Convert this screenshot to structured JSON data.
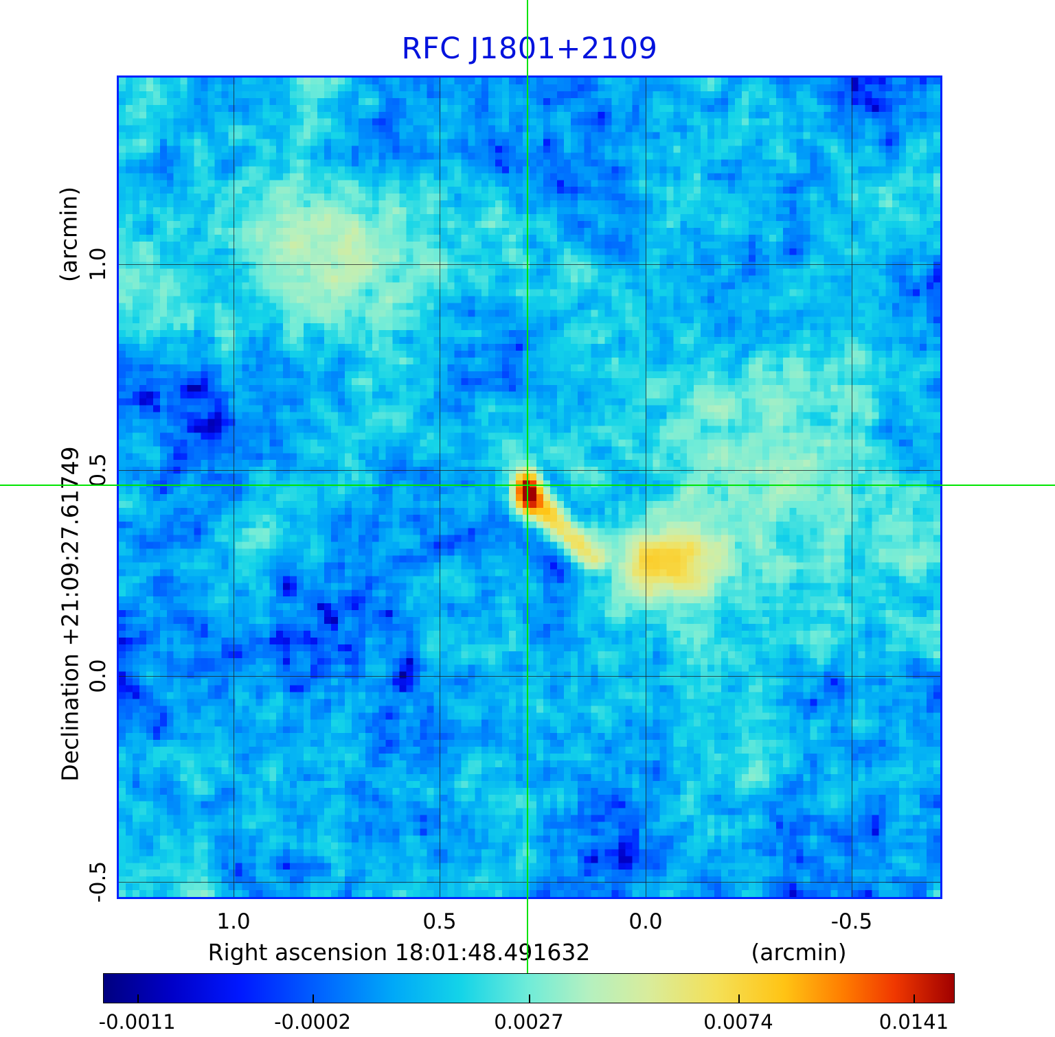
{
  "title": "RFC J1801+2109",
  "colors": {
    "title": "#0012dd",
    "plot_border": "#0022ff",
    "crosshair": "#00e400",
    "grid": "#1f1f1f"
  },
  "y_axis": {
    "unit": "(arcmin)",
    "label": "Declination  +21:09:27.61749",
    "ticks": [
      "1.0",
      "0.5",
      "0.0",
      "-0.5"
    ]
  },
  "x_axis": {
    "label": "Right ascension  18:01:48.491632",
    "unit": "(arcmin)",
    "ticks": [
      "1.0",
      "0.5",
      "0.0",
      "-0.5"
    ]
  },
  "colorbar": {
    "tick_labels": [
      "-0.0011",
      "-0.0002",
      "0.0027",
      "0.0074",
      "0.0141"
    ]
  },
  "chart_data": {
    "type": "heatmap",
    "title": "RFC J1801+2109",
    "xlabel": "Right ascension 18:01:48.491632 (arcmin)",
    "ylabel": "Declination +21:09:27.61749 (arcmin)",
    "x_range_arcmin": [
      1.2783,
      -0.715
    ],
    "y_range_arcmin": [
      1.4533,
      -0.5367
    ],
    "x_ticks_arcmin": [
      1.0,
      0.5,
      0.0,
      -0.5
    ],
    "y_ticks_arcmin": [
      1.0,
      0.5,
      0.0,
      -0.5
    ],
    "grid": true,
    "crosshair_arcmin": {
      "x": 0.287,
      "y": 0.463
    },
    "intensity_ticks": [
      -0.0011,
      -0.0002,
      0.0027,
      0.0074,
      0.0141
    ],
    "intensity_tick_positions": [
      0.04,
      0.246,
      0.5,
      0.746,
      0.952
    ],
    "background": {
      "mean": 0.0011,
      "fine_rms": 0.00042,
      "coarse_rms": 0.00055,
      "pixel_rms": 0.00012,
      "seed": 20109
    },
    "features": [
      {
        "name": "core",
        "type": "gaussian",
        "x": 0.287,
        "y": 0.452,
        "sx": 0.02,
        "sy": 0.028,
        "amp": 0.0165
      },
      {
        "name": "jet",
        "type": "track",
        "from": [
          0.262,
          0.415
        ],
        "to": [
          0.125,
          0.285
        ],
        "sigma": 0.024,
        "amp_from": 0.0085,
        "amp_to": 0.0048,
        "steps": 10
      },
      {
        "name": "southwest-lobe",
        "type": "gaussian",
        "x": -0.05,
        "y": 0.275,
        "sx": 0.085,
        "sy": 0.062,
        "amp": 0.0058
      },
      {
        "name": "lobe-halo",
        "type": "gaussian",
        "x": -0.16,
        "y": 0.36,
        "sx": 0.26,
        "sy": 0.17,
        "amp": 0.0015
      },
      {
        "name": "northwest-diffuse-blob",
        "type": "gaussian",
        "x": 0.82,
        "y": 1.03,
        "sx": 0.17,
        "sy": 0.13,
        "amp": 0.0027
      },
      {
        "name": "east-pale-region",
        "type": "gaussian",
        "x": -0.45,
        "y": 0.52,
        "sx": 0.28,
        "sy": 0.26,
        "amp": 0.0008
      },
      {
        "name": "dark-patch-southwest",
        "type": "gaussian",
        "x": 0.7,
        "y": 0.03,
        "sx": 0.3,
        "sy": 0.24,
        "amp": -0.001
      },
      {
        "name": "dark-patch-north",
        "type": "gaussian",
        "x": -0.12,
        "y": 1.3,
        "sx": 0.28,
        "sy": 0.17,
        "amp": -0.0008
      },
      {
        "name": "dark-patch-center",
        "type": "gaussian",
        "x": 0.47,
        "y": 0.72,
        "sx": 0.18,
        "sy": 0.14,
        "amp": -0.0007
      },
      {
        "name": "dark-spot-east",
        "type": "gaussian",
        "x": -0.63,
        "y": 0.56,
        "sx": 0.1,
        "sy": 0.08,
        "amp": -0.0009
      }
    ],
    "colormap": [
      {
        "t": 0.0,
        "c": "#000080"
      },
      {
        "t": 0.08,
        "c": "#0000c8"
      },
      {
        "t": 0.16,
        "c": "#0018ff"
      },
      {
        "t": 0.26,
        "c": "#0068ff"
      },
      {
        "t": 0.34,
        "c": "#00a8f8"
      },
      {
        "t": 0.42,
        "c": "#14d4e8"
      },
      {
        "t": 0.5,
        "c": "#70ecd8"
      },
      {
        "t": 0.57,
        "c": "#b4f0c0"
      },
      {
        "t": 0.64,
        "c": "#d8ec9c"
      },
      {
        "t": 0.72,
        "c": "#f4e058"
      },
      {
        "t": 0.8,
        "c": "#ffc414"
      },
      {
        "t": 0.87,
        "c": "#ff7c00"
      },
      {
        "t": 0.93,
        "c": "#f03800"
      },
      {
        "t": 1.0,
        "c": "#a00000"
      }
    ]
  }
}
